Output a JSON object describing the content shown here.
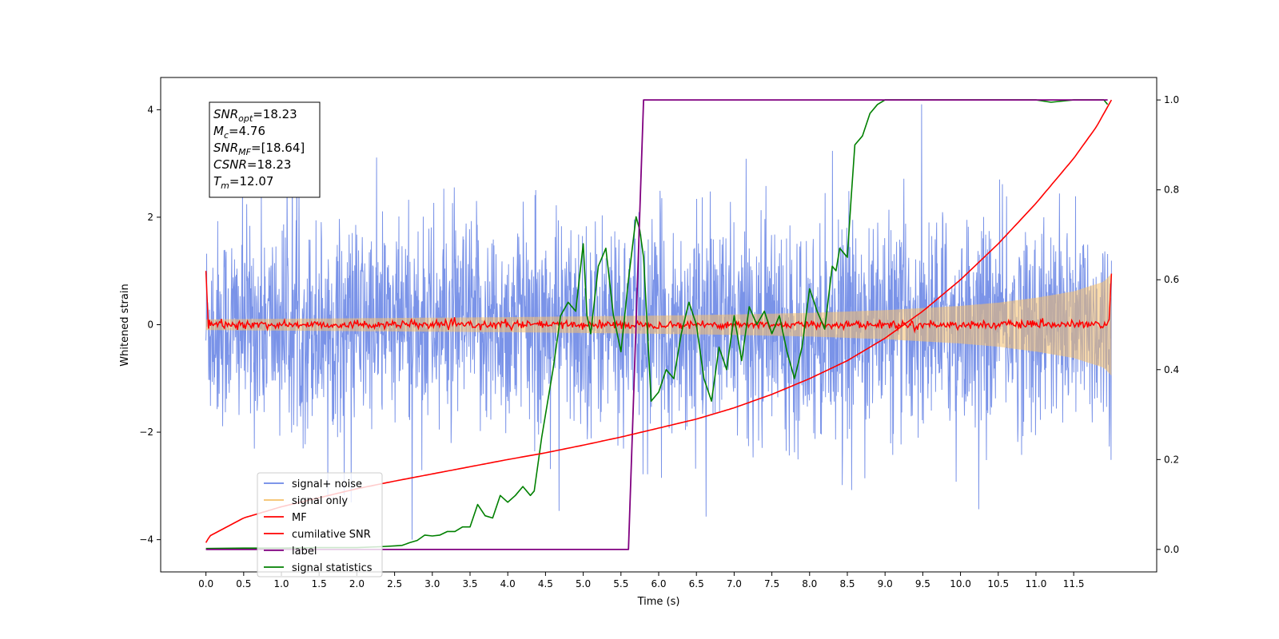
{
  "chart_data": {
    "type": "line",
    "title": "",
    "xlabel": "Time (s)",
    "ylabel": "Whitened strain",
    "xlim": [
      -0.6,
      12.6
    ],
    "ylim": [
      -4.6,
      4.6
    ],
    "y2lim": [
      -0.05,
      1.05
    ],
    "xticks": [
      0.0,
      0.5,
      1.0,
      1.5,
      2.0,
      2.5,
      3.0,
      3.5,
      4.0,
      4.5,
      5.0,
      5.5,
      6.0,
      6.5,
      7.0,
      7.5,
      8.0,
      8.5,
      9.0,
      9.5,
      10.0,
      10.5,
      11.0,
      11.5
    ],
    "xtick_labels": [
      "0.0",
      "0.5",
      "1.0",
      "1.5",
      "2.0",
      "2.5",
      "3.0",
      "3.5",
      "4.0",
      "4.5",
      "5.0",
      "5.5",
      "6.0",
      "6.5",
      "7.0",
      "7.5",
      "8.0",
      "8.5",
      "9.0",
      "9.5",
      "10.0",
      "10.5",
      "11.0",
      "11.5"
    ],
    "yticks": [
      -4,
      -2,
      0,
      2,
      4
    ],
    "ytick_labels": [
      "−4",
      "−2",
      "0",
      "2",
      "4"
    ],
    "y2ticks": [
      0.0,
      0.2,
      0.4,
      0.6,
      0.8,
      1.0
    ],
    "y2tick_labels": [
      "0.0",
      "0.2",
      "0.4",
      "0.6",
      "0.8",
      "1.0"
    ],
    "grid": false,
    "legend_position": "lower-left",
    "series": [
      {
        "name": "signal+ noise",
        "color": "#6b87e6",
        "axis": "left",
        "description_range": {
          "x_start": 0.0,
          "x_end": 12.0,
          "typical_min": -2.4,
          "typical_max": 2.4,
          "extreme_max": 4.1,
          "extreme_min": -4.0
        }
      },
      {
        "name": "signal only",
        "color": "#f5c06a",
        "axis": "left",
        "envelope": {
          "x": [
            0.0,
            2.0,
            4.0,
            6.0,
            7.0,
            8.0,
            9.0,
            10.0,
            10.5,
            11.0,
            11.5,
            11.9,
            12.0
          ],
          "amplitude": [
            0.1,
            0.12,
            0.14,
            0.17,
            0.19,
            0.22,
            0.27,
            0.35,
            0.41,
            0.5,
            0.62,
            0.8,
            0.95
          ]
        }
      },
      {
        "name": "MF",
        "color": "#ff0000",
        "axis": "left",
        "start_value": 1.0,
        "level": 0.0,
        "jitter": 0.06,
        "end_value": 0.95
      },
      {
        "name": "cumilative SNR",
        "color": "#ff0000",
        "axis": "right",
        "x": [
          0.0,
          0.05,
          0.5,
          1.0,
          1.5,
          2.0,
          2.5,
          3.0,
          3.5,
          4.0,
          4.5,
          5.0,
          5.5,
          6.0,
          6.5,
          7.0,
          7.5,
          8.0,
          8.5,
          9.0,
          9.5,
          10.0,
          10.5,
          11.0,
          11.5,
          11.8,
          12.0
        ],
        "y": [
          0.015,
          0.03,
          0.07,
          0.095,
          0.115,
          0.135,
          0.152,
          0.168,
          0.184,
          0.2,
          0.215,
          0.232,
          0.25,
          0.27,
          0.29,
          0.315,
          0.345,
          0.38,
          0.42,
          0.47,
          0.53,
          0.6,
          0.68,
          0.77,
          0.87,
          0.94,
          1.0
        ]
      },
      {
        "name": "label",
        "color": "#800080",
        "axis": "right",
        "x": [
          0.0,
          5.6,
          5.8,
          11.95
        ],
        "y": [
          0.0,
          0.0,
          1.0,
          1.0
        ]
      },
      {
        "name": "signal statistics",
        "color": "#008000",
        "axis": "right",
        "x": [
          0.0,
          0.5,
          1.0,
          1.5,
          2.0,
          2.3,
          2.5,
          2.6,
          2.7,
          2.8,
          2.9,
          3.0,
          3.1,
          3.2,
          3.3,
          3.4,
          3.5,
          3.6,
          3.7,
          3.8,
          3.9,
          4.0,
          4.1,
          4.2,
          4.3,
          4.35,
          4.45,
          4.5,
          4.6,
          4.7,
          4.8,
          4.9,
          5.0,
          5.05,
          5.1,
          5.2,
          5.3,
          5.4,
          5.5,
          5.6,
          5.7,
          5.75,
          5.8,
          5.9,
          6.0,
          6.1,
          6.2,
          6.3,
          6.4,
          6.5,
          6.6,
          6.7,
          6.8,
          6.9,
          7.0,
          7.1,
          7.2,
          7.3,
          7.4,
          7.5,
          7.6,
          7.7,
          7.8,
          7.9,
          8.0,
          8.1,
          8.2,
          8.3,
          8.35,
          8.4,
          8.5,
          8.55,
          8.6,
          8.7,
          8.8,
          8.9,
          9.0,
          9.2,
          9.5,
          10.0,
          10.5,
          11.0,
          11.2,
          11.5,
          11.9,
          11.95
        ],
        "y": [
          0.002,
          0.003,
          0.003,
          0.004,
          0.004,
          0.006,
          0.008,
          0.009,
          0.015,
          0.02,
          0.032,
          0.03,
          0.032,
          0.04,
          0.04,
          0.05,
          0.05,
          0.1,
          0.075,
          0.07,
          0.12,
          0.105,
          0.12,
          0.14,
          0.12,
          0.13,
          0.25,
          0.3,
          0.4,
          0.52,
          0.55,
          0.53,
          0.68,
          0.52,
          0.48,
          0.63,
          0.67,
          0.52,
          0.44,
          0.6,
          0.74,
          0.71,
          0.65,
          0.33,
          0.35,
          0.4,
          0.38,
          0.48,
          0.55,
          0.5,
          0.38,
          0.33,
          0.45,
          0.4,
          0.52,
          0.42,
          0.54,
          0.5,
          0.53,
          0.48,
          0.52,
          0.44,
          0.38,
          0.45,
          0.58,
          0.53,
          0.49,
          0.63,
          0.62,
          0.67,
          0.65,
          0.78,
          0.9,
          0.92,
          0.97,
          0.99,
          1.0,
          1.0,
          1.0,
          1.0,
          1.0,
          1.0,
          0.995,
          1.0,
          1.0,
          0.99
        ]
      }
    ],
    "annotation_box": {
      "lines": [
        {
          "name": "SNR",
          "sub": "opt",
          "value": "=18.23"
        },
        {
          "name": "M",
          "sub": "c",
          "value": "=4.76"
        },
        {
          "name": "SNR",
          "sub": "MF",
          "value": "=[18.64]"
        },
        {
          "name": "CSNR",
          "sub": "",
          "value": "=18.23"
        },
        {
          "name": "T",
          "sub": "m",
          "value": "=12.07"
        }
      ]
    }
  }
}
